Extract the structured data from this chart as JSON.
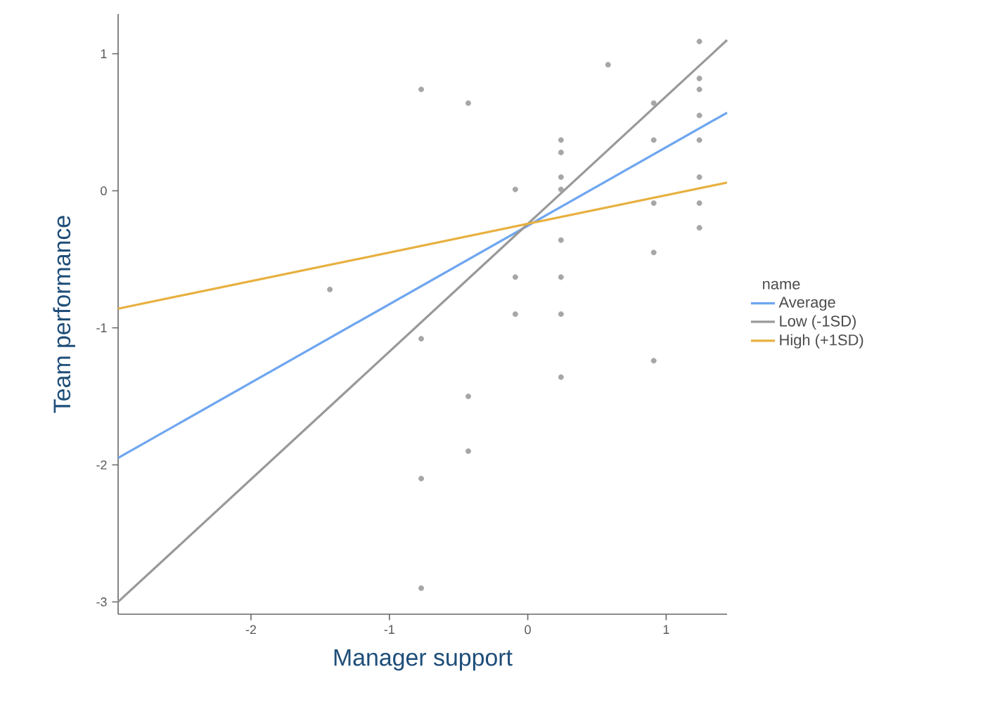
{
  "chart_data": {
    "type": "scatter",
    "xlabel": "Manager support",
    "ylabel": "Team performance",
    "legend_title": "name",
    "legend": "right",
    "xlim": [
      -2.96,
      1.44
    ],
    "ylim": [
      -3.09,
      1.29
    ],
    "xticks": [
      -2,
      -1,
      0,
      1
    ],
    "yticks": [
      -3,
      -2,
      -1,
      0,
      1
    ],
    "series": [
      {
        "color": "#a6a6a6",
        "marker": "circle",
        "x": [
          1.24,
          0.58,
          1.24,
          1.24,
          -0.77,
          -0.43,
          0.91,
          1.24,
          0.24,
          0.91,
          1.24,
          0.24,
          0.24,
          1.24,
          -0.09,
          0.24,
          0.91,
          1.24,
          1.24,
          0.24,
          0.91,
          -0.09,
          0.24,
          -1.43,
          -0.09,
          0.24,
          -0.77,
          0.91,
          0.24,
          -0.43,
          -0.43,
          -0.77,
          -0.77
        ],
        "values": [
          1.09,
          0.92,
          0.82,
          0.74,
          0.74,
          0.64,
          0.64,
          0.55,
          0.37,
          0.37,
          0.37,
          0.28,
          0.1,
          0.1,
          0.01,
          0.01,
          -0.09,
          -0.09,
          -0.27,
          -0.36,
          -0.45,
          -0.63,
          -0.63,
          -0.72,
          -0.9,
          -0.9,
          -1.08,
          -1.24,
          -1.36,
          -1.5,
          -1.9,
          -2.1,
          -2.9
        ]
      },
      {
        "type": "line",
        "name": "Average",
        "color": "#6ea6f0",
        "x": [
          -2.96,
          1.44
        ],
        "values": [
          -1.95,
          0.57
        ]
      },
      {
        "type": "line",
        "name": "Low (-1SD)",
        "color": "#999999",
        "x": [
          -2.96,
          1.44
        ],
        "values": [
          -3.0,
          1.1
        ]
      },
      {
        "type": "line",
        "name": "High (+1SD)",
        "color": "#e8b040",
        "x": [
          -2.96,
          1.44
        ],
        "values": [
          -0.86,
          0.06
        ]
      }
    ]
  }
}
